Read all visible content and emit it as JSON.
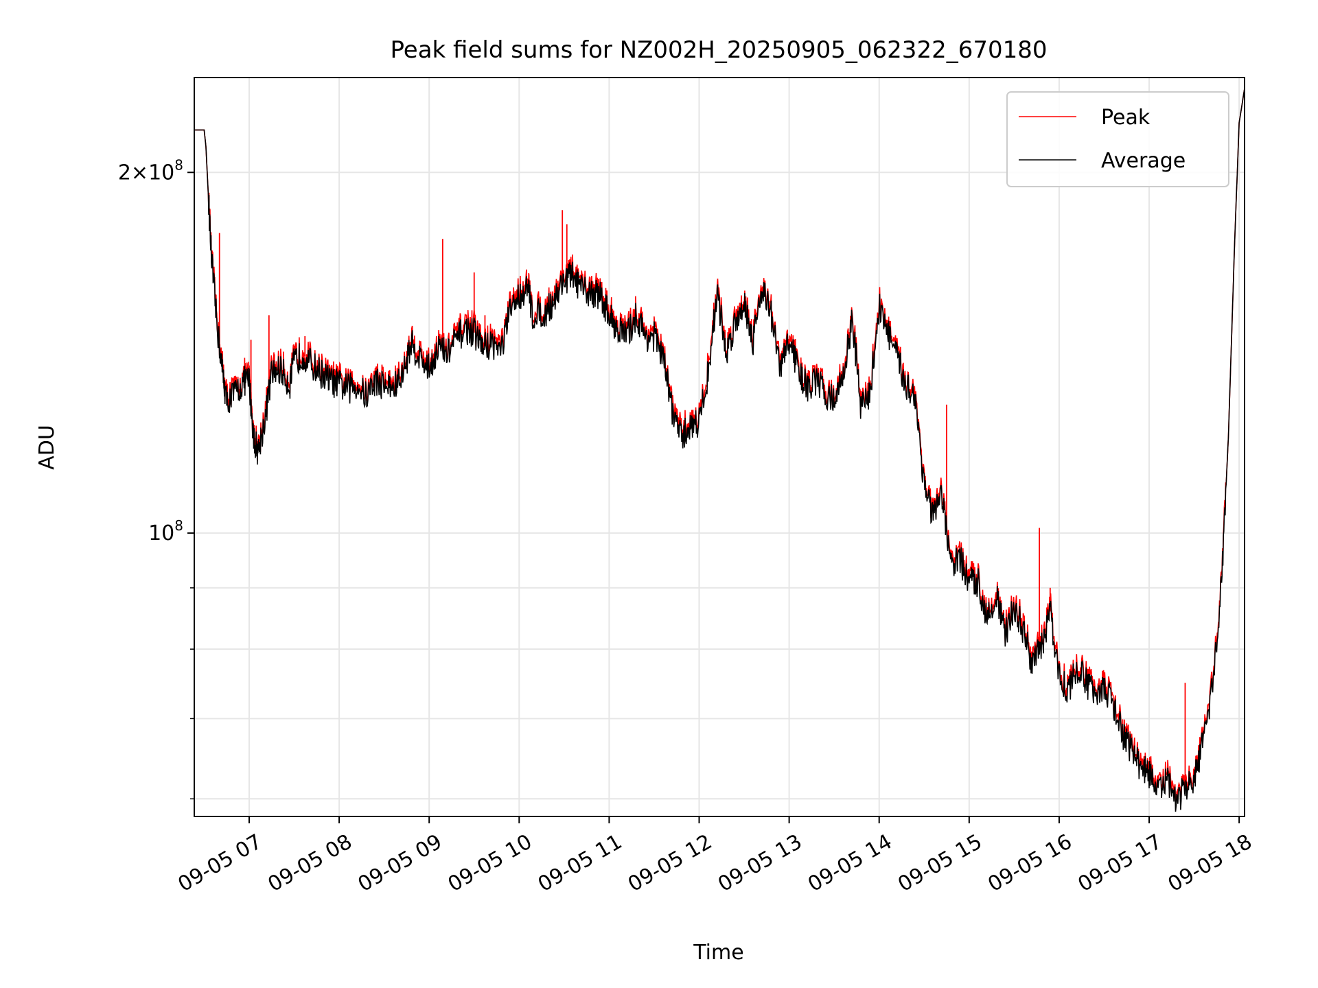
{
  "chart_data": {
    "type": "line",
    "title": "Peak field sums for NZ002H_20250905_062322_670180",
    "xlabel": "Time",
    "ylabel": "ADU",
    "yscale": "log",
    "xlim": [
      6.39,
      18.06
    ],
    "ylim": [
      58000000,
      240000000
    ],
    "grid": true,
    "legend_position": "top-right",
    "x_ticks": [
      7,
      8,
      9,
      10,
      11,
      12,
      13,
      14,
      15,
      16,
      17,
      18
    ],
    "x_tick_labels": [
      "09-05 07",
      "09-05 08",
      "09-05 09",
      "09-05 10",
      "09-05 11",
      "09-05 12",
      "09-05 13",
      "09-05 14",
      "09-05 15",
      "09-05 16",
      "09-05 17",
      "09-05 18"
    ],
    "y_major_ticks": [
      {
        "value": 100000000,
        "base": "10",
        "exp": "8",
        "mant": ""
      },
      {
        "value": 200000000,
        "base": "10",
        "exp": "8",
        "mant": "2×"
      }
    ],
    "y_minor_ticks": [
      60000000,
      70000000,
      80000000,
      90000000
    ],
    "series": [
      {
        "name": "Peak",
        "color": "#ff0000"
      },
      {
        "name": "Average",
        "color": "#000000"
      }
    ],
    "average_points": [
      [
        6.39,
        217000000
      ],
      [
        6.5,
        217000000
      ],
      [
        6.52,
        210000000
      ],
      [
        6.58,
        170000000
      ],
      [
        6.64,
        150000000
      ],
      [
        6.7,
        137000000
      ],
      [
        6.75,
        129000000
      ],
      [
        6.85,
        131000000
      ],
      [
        6.95,
        134000000
      ],
      [
        7.0,
        134000000
      ],
      [
        7.05,
        120000000
      ],
      [
        7.1,
        117000000
      ],
      [
        7.18,
        125000000
      ],
      [
        7.25,
        136000000
      ],
      [
        7.35,
        137000000
      ],
      [
        7.45,
        133000000
      ],
      [
        7.5,
        139000000
      ],
      [
        7.6,
        141000000
      ],
      [
        7.7,
        138000000
      ],
      [
        7.8,
        136000000
      ],
      [
        7.9,
        134000000
      ],
      [
        8.0,
        133000000
      ],
      [
        8.1,
        132000000
      ],
      [
        8.2,
        133000000
      ],
      [
        8.3,
        130000000
      ],
      [
        8.4,
        134000000
      ],
      [
        8.5,
        133000000
      ],
      [
        8.6,
        132000000
      ],
      [
        8.7,
        135000000
      ],
      [
        8.8,
        144000000
      ],
      [
        8.9,
        140000000
      ],
      [
        9.0,
        137000000
      ],
      [
        9.1,
        143000000
      ],
      [
        9.2,
        141000000
      ],
      [
        9.3,
        145000000
      ],
      [
        9.4,
        148000000
      ],
      [
        9.5,
        147000000
      ],
      [
        9.6,
        143000000
      ],
      [
        9.7,
        144000000
      ],
      [
        9.8,
        142000000
      ],
      [
        9.9,
        153000000
      ],
      [
        10.0,
        158000000
      ],
      [
        10.1,
        160000000
      ],
      [
        10.15,
        152000000
      ],
      [
        10.3,
        153000000
      ],
      [
        10.4,
        157000000
      ],
      [
        10.5,
        163000000
      ],
      [
        10.6,
        164000000
      ],
      [
        10.7,
        159000000
      ],
      [
        10.8,
        159000000
      ],
      [
        10.9,
        158000000
      ],
      [
        11.0,
        152000000
      ],
      [
        11.1,
        148000000
      ],
      [
        11.2,
        146000000
      ],
      [
        11.3,
        152000000
      ],
      [
        11.4,
        146000000
      ],
      [
        11.5,
        146000000
      ],
      [
        11.6,
        140000000
      ],
      [
        11.7,
        127000000
      ],
      [
        11.8,
        120000000
      ],
      [
        11.9,
        123000000
      ],
      [
        12.0,
        124000000
      ],
      [
        12.1,
        136000000
      ],
      [
        12.2,
        159000000
      ],
      [
        12.3,
        141000000
      ],
      [
        12.4,
        150000000
      ],
      [
        12.5,
        156000000
      ],
      [
        12.6,
        145000000
      ],
      [
        12.7,
        161000000
      ],
      [
        12.8,
        152000000
      ],
      [
        12.9,
        137000000
      ],
      [
        13.0,
        145000000
      ],
      [
        13.1,
        137000000
      ],
      [
        13.2,
        132000000
      ],
      [
        13.3,
        134000000
      ],
      [
        13.4,
        131000000
      ],
      [
        13.5,
        129000000
      ],
      [
        13.6,
        135000000
      ],
      [
        13.7,
        151000000
      ],
      [
        13.8,
        127000000
      ],
      [
        13.9,
        131000000
      ],
      [
        14.0,
        155000000
      ],
      [
        14.1,
        147000000
      ],
      [
        14.2,
        140000000
      ],
      [
        14.3,
        133000000
      ],
      [
        14.4,
        130000000
      ],
      [
        14.5,
        110000000
      ],
      [
        14.6,
        103000000
      ],
      [
        14.7,
        107000000
      ],
      [
        14.8,
        94000000
      ],
      [
        14.9,
        95000000
      ],
      [
        15.0,
        91000000
      ],
      [
        15.1,
        91000000
      ],
      [
        15.2,
        85000000
      ],
      [
        15.3,
        89000000
      ],
      [
        15.4,
        82000000
      ],
      [
        15.5,
        87000000
      ],
      [
        15.6,
        83000000
      ],
      [
        15.7,
        78000000
      ],
      [
        15.8,
        80000000
      ],
      [
        15.9,
        86000000
      ],
      [
        16.0,
        76000000
      ],
      [
        16.1,
        74000000
      ],
      [
        16.2,
        77000000
      ],
      [
        16.3,
        75000000
      ],
      [
        16.4,
        74000000
      ],
      [
        16.5,
        74000000
      ],
      [
        16.6,
        72000000
      ],
      [
        16.7,
        68000000
      ],
      [
        16.8,
        66000000
      ],
      [
        16.9,
        64000000
      ],
      [
        17.0,
        63000000
      ],
      [
        17.1,
        61000000
      ],
      [
        17.2,
        62000000
      ],
      [
        17.3,
        60000000
      ],
      [
        17.4,
        61000000
      ],
      [
        17.5,
        62000000
      ],
      [
        17.6,
        67000000
      ],
      [
        17.7,
        74000000
      ],
      [
        17.8,
        90000000
      ],
      [
        17.88,
        120000000
      ],
      [
        17.95,
        175000000
      ],
      [
        18.0,
        220000000
      ],
      [
        18.06,
        235000000
      ]
    ],
    "peak_spikes": [
      [
        6.67,
        178000000
      ],
      [
        7.02,
        145000000
      ],
      [
        7.22,
        152000000
      ],
      [
        7.28,
        141000000
      ],
      [
        7.62,
        146000000
      ],
      [
        9.15,
        176000000
      ],
      [
        9.35,
        150000000
      ],
      [
        9.5,
        165000000
      ],
      [
        9.62,
        152000000
      ],
      [
        10.48,
        186000000
      ],
      [
        10.53,
        181000000
      ],
      [
        14.75,
        128000000
      ],
      [
        15.78,
        101000000
      ],
      [
        15.9,
        90000000
      ],
      [
        17.4,
        75000000
      ]
    ]
  },
  "legend": {
    "peak_label": "Peak",
    "average_label": "Average"
  }
}
